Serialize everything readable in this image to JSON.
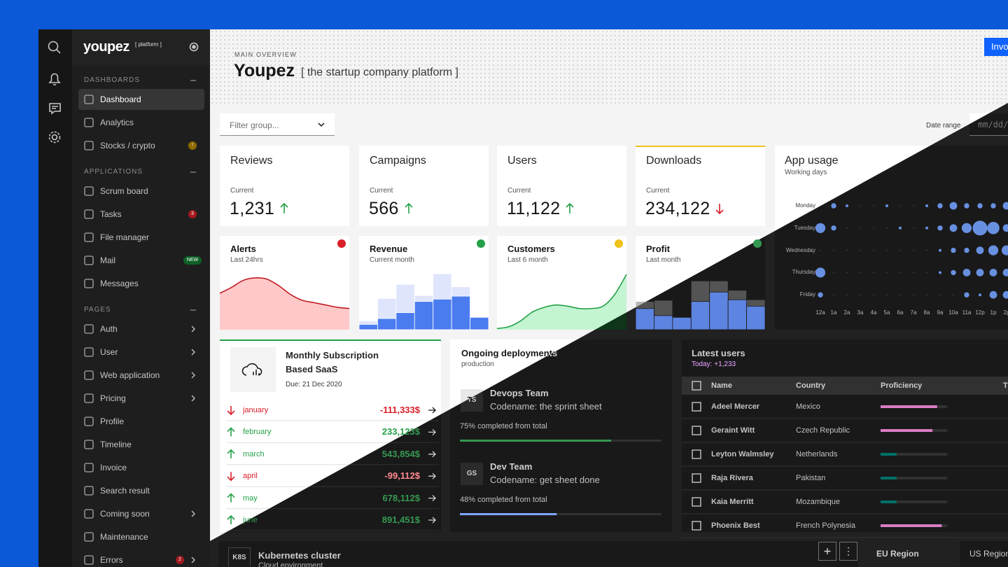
{
  "brand": {
    "name": "youpez",
    "tag": "[ platform ]"
  },
  "sidebar": [
    {
      "title": "DASHBOARDS",
      "items": [
        {
          "label": "Dashboard",
          "active": true
        },
        {
          "label": "Analytics"
        },
        {
          "label": "Stocks / crypto",
          "badge": "!",
          "badge_color": "#8e6a00"
        }
      ]
    },
    {
      "title": "APPLICATIONS",
      "items": [
        {
          "label": "Scrum board"
        },
        {
          "label": "Tasks",
          "badge": "3",
          "badge_color": "#a2191f"
        },
        {
          "label": "File manager"
        },
        {
          "label": "Mail",
          "badge": "NEW",
          "badge_color": "#0e6027"
        },
        {
          "label": "Messages"
        }
      ]
    },
    {
      "title": "PAGES",
      "items": [
        {
          "label": "Auth",
          "submenu": true
        },
        {
          "label": "User",
          "submenu": true
        },
        {
          "label": "Web application",
          "submenu": true
        },
        {
          "label": "Pricing",
          "submenu": true
        },
        {
          "label": "Profile"
        },
        {
          "label": "Timeline"
        },
        {
          "label": "Invoice"
        },
        {
          "label": "Search result"
        },
        {
          "label": "Coming soon",
          "submenu": true
        },
        {
          "label": "Maintenance"
        },
        {
          "label": "Errors",
          "badge": "2",
          "badge_color": "#a2191f",
          "submenu": true
        }
      ]
    }
  ],
  "header": {
    "kicker": "MAIN OVERVIEW",
    "title": "Youpez",
    "subtitle": "[ the startup company platform ]",
    "button": "Invo"
  },
  "toolbar": {
    "filter": "Filter group...",
    "date_label": "Date range",
    "date_placeholder": "mm/dd/"
  },
  "stats": [
    {
      "title": "Reviews",
      "caption": "Current",
      "value": "1,231",
      "trend": "up"
    },
    {
      "title": "Campaigns",
      "caption": "Current",
      "value": "566",
      "trend": "up"
    },
    {
      "title": "Users",
      "caption": "Current",
      "value": "11,122",
      "trend": "up"
    },
    {
      "title": "Downloads",
      "caption": "Current",
      "value": "234,122",
      "trend": "down",
      "accent": "#f1c21b"
    }
  ],
  "app_usage": {
    "type": "bubble",
    "title": "App usage",
    "subtitle": "Working days",
    "color": "#3d6fd6",
    "rows": [
      "Monday",
      "Tuesday",
      "Wednesday",
      "Thursday",
      "Friday"
    ],
    "columns": [
      "12a",
      "1a",
      "2a",
      "3a",
      "4a",
      "5a",
      "6a",
      "7a",
      "8a",
      "9a",
      "10a",
      "11a",
      "12p",
      "1p",
      "2p"
    ],
    "values": [
      [
        0,
        2,
        1,
        0,
        0,
        1,
        0,
        0,
        1,
        2,
        3,
        2,
        2,
        2,
        3
      ],
      [
        4,
        2,
        0,
        0,
        0,
        0,
        1,
        0,
        1,
        2,
        3,
        4,
        6,
        5,
        3
      ],
      [
        0,
        0,
        0,
        0,
        0,
        0,
        0,
        0,
        0,
        1,
        2,
        2,
        3,
        4,
        4
      ],
      [
        4,
        0,
        0,
        0,
        0,
        0,
        0,
        0,
        0,
        1,
        2,
        3,
        3,
        3,
        3
      ],
      [
        2,
        0,
        0,
        0,
        0,
        0,
        0,
        0,
        0,
        0,
        0,
        2,
        1,
        3,
        3
      ]
    ]
  },
  "mini_charts": [
    {
      "type": "area",
      "title": "Alerts",
      "subtitle": "Last 24hrs",
      "status_color": "#da1e28",
      "color": "#c21b25",
      "fill": "#ffc9c9",
      "ylim": [
        0,
        100
      ],
      "values": [
        62,
        72,
        84,
        88,
        86,
        75,
        60,
        50,
        46,
        42,
        38,
        36
      ]
    },
    {
      "type": "bar",
      "title": "Revenue",
      "subtitle": "Current month",
      "status_color": "#24a148",
      "ylim": [
        0,
        100
      ],
      "series": [
        {
          "color": "#dfe5fc",
          "values": [
            15,
            53,
            77,
            58,
            95,
            73,
            21
          ]
        },
        {
          "color": "#4a7cf0",
          "values": [
            9,
            19,
            29,
            48,
            52,
            57,
            21
          ]
        }
      ]
    },
    {
      "type": "area",
      "title": "Customers",
      "subtitle": "Last 6 month",
      "status_color": "#f1c21b",
      "color": "#24a148",
      "fill": "#c4f5d2",
      "ylim": [
        0,
        100
      ],
      "values": [
        2,
        5,
        15,
        30,
        38,
        42,
        40,
        36,
        36,
        40,
        60,
        94
      ]
    },
    {
      "type": "bar",
      "title": "Profit",
      "subtitle": "Last month",
      "status_color": "#24a148",
      "ylim": [
        0,
        100
      ],
      "series": [
        {
          "color": "#b5b5b5",
          "values": [
            48,
            50,
            0,
            83,
            83,
            67,
            51
          ]
        },
        {
          "color": "#4a7cf0",
          "values": [
            36,
            24,
            21,
            48,
            64,
            51,
            40
          ]
        }
      ]
    }
  ],
  "subscription": {
    "title": "Monthly Subscription Based SaaS",
    "due": "Due: 21 Dec 2020",
    "accent": "#24a148",
    "rows": [
      {
        "month": "january",
        "amount": "-111,333$",
        "trend": "down"
      },
      {
        "month": "february",
        "amount": "233,123$",
        "trend": "up"
      },
      {
        "month": "march",
        "amount": "543,854$",
        "trend": "up"
      },
      {
        "month": "april",
        "amount": "-99,112$",
        "trend": "down"
      },
      {
        "month": "may",
        "amount": "678,112$",
        "trend": "up"
      },
      {
        "month": "june",
        "amount": "891,451$",
        "trend": "up"
      }
    ]
  },
  "deployments": {
    "title": "Ongoing deployments",
    "subtitle": "production",
    "items": [
      {
        "badge": "TS",
        "team": "Devops Team",
        "codename": "Codename: the sprint sheet",
        "progress": 75,
        "progress_label": "75% completed from total",
        "color": "#24a148"
      },
      {
        "badge": "GS",
        "team": "Dev Team",
        "codename": "Codename: get sheet done",
        "progress": 48,
        "progress_label": "48% completed from total",
        "color": "#1d4fd6"
      }
    ]
  },
  "latest_users": {
    "title": "Latest users",
    "subtitle": "Today: +1,233",
    "columns": [
      "Name",
      "Country",
      "Proficiency",
      "T"
    ],
    "rows": [
      {
        "name": "Adeel Mercer",
        "country": "Mexico",
        "proficiency": 85,
        "color": "#b7419b"
      },
      {
        "name": "Geraint Witt",
        "country": "Czech Republic",
        "proficiency": 78,
        "color": "#b7419b"
      },
      {
        "name": "Leyton Walmsley",
        "country": "Netherlands",
        "proficiency": 24,
        "color": "#25e1d7"
      },
      {
        "name": "Raja Rivera",
        "country": "Pakistan",
        "proficiency": 24,
        "color": "#25e1d7"
      },
      {
        "name": "Kaia Merritt",
        "country": "Mozambique",
        "proficiency": 24,
        "color": "#25e1d7"
      },
      {
        "name": "Phoenix Best",
        "country": "French Polynesia",
        "proficiency": 92,
        "color": "#b7419b"
      }
    ]
  },
  "cluster": {
    "badge": "K8S",
    "title": "Kubernetes cluster",
    "subtitle": "Cloud environment"
  },
  "regions": [
    {
      "label": "EU Region",
      "active": true
    },
    {
      "label": "US Region"
    }
  ]
}
